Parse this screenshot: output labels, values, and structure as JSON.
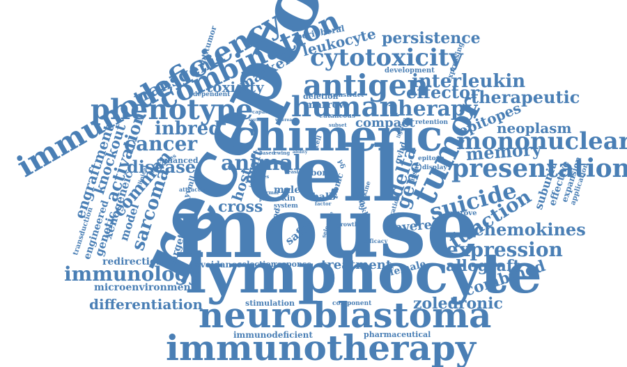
{
  "cloud": {
    "color": "#4a7fb5",
    "words": [
      "mouse",
      "cell",
      "receptor",
      "lymphocyte",
      "chimeric",
      "neuroblastoma",
      "immunotherapy",
      "immunodeficiency",
      "combination",
      "tumor",
      "presentation",
      "antigen",
      "human",
      "phenotype",
      "cytotoxicity",
      "mononuclear",
      "expression",
      "immunology",
      "therapy",
      "suicide",
      "function",
      "chemokines",
      "cancer",
      "disease",
      "inbred",
      "animal",
      "delta",
      "gene",
      "sarcoma",
      "common",
      "activation",
      "knockout",
      "engraftment",
      "transgenic",
      "memory",
      "interleukin",
      "effector",
      "therapeutic",
      "persistence",
      "leukocyte",
      "toxicity",
      "marker",
      "epitopes",
      "neoplasm",
      "allograft",
      "combined",
      "zoledronic",
      "treatment",
      "differentiation",
      "redirection",
      "microenvironment",
      "avoidance",
      "selection",
      "response",
      "stimulation",
      "immunodeficient",
      "pharmaceutical",
      "component",
      "female",
      "severe",
      "cross",
      "host",
      "graft",
      "genetic",
      "engineered",
      "xenogeneic",
      "model",
      "transduction",
      "target",
      "compact",
      "marrow",
      "deletion",
      "construct",
      "peripheral",
      "antitumor",
      "development",
      "expressing",
      "subunit",
      "effective",
      "expansion",
      "application",
      "improve",
      "growth",
      "efficacy",
      "migration",
      "safer",
      "blood",
      "selective",
      "balb",
      "male",
      "skin",
      "system",
      "bone",
      "ability",
      "based",
      "ewing",
      "capacity",
      "cutaneous",
      "subset",
      "retention",
      "ligation",
      "epitope",
      "display",
      "tissue",
      "enhanced",
      "antibodies",
      "clinical",
      "attractive",
      "normal",
      "patient",
      "studies",
      "easier",
      "pbmc",
      "immune",
      "dependent",
      "surface",
      "whereas",
      "cytokine",
      "tcell",
      "gvhd",
      "factor",
      "nmhbkk",
      "γδ",
      "yvmll"
    ]
  }
}
